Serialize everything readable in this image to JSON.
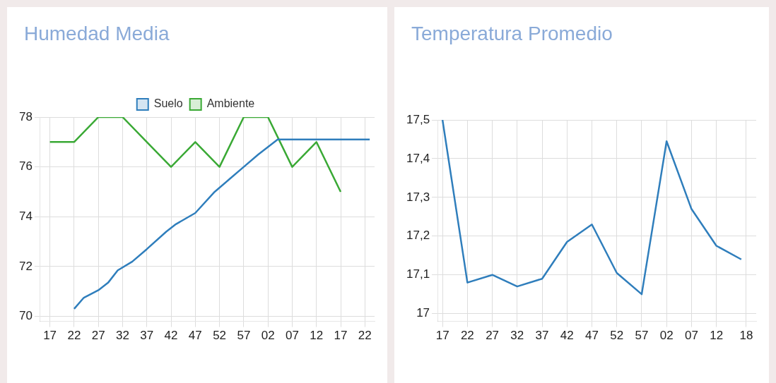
{
  "chart_data": [
    {
      "type": "line",
      "title": "Humedad Media",
      "legend": "top",
      "grid": true,
      "marker": "none",
      "xlim": [
        "--01-01T10:15",
        "--01-01T11:24"
      ],
      "xticks": [
        {
          "value": "--01-01T10:17",
          "label": "17"
        },
        {
          "value": "--01-01T10:22",
          "label": "22"
        },
        {
          "value": "--01-01T10:27",
          "label": "27"
        },
        {
          "value": "--01-01T10:32",
          "label": "32"
        },
        {
          "value": "--01-01T10:37",
          "label": "37"
        },
        {
          "value": "--01-01T10:42",
          "label": "42"
        },
        {
          "value": "--01-01T10:47",
          "label": "47"
        },
        {
          "value": "--01-01T10:52",
          "label": "52"
        },
        {
          "value": "--01-01T10:57",
          "label": "57"
        },
        {
          "value": "--01-01T11:02",
          "label": "02"
        },
        {
          "value": "--01-01T11:07",
          "label": "07"
        },
        {
          "value": "--01-01T11:12",
          "label": "12"
        },
        {
          "value": "--01-01T11:17",
          "label": "17"
        },
        {
          "value": "--01-01T11:22",
          "label": "22"
        }
      ],
      "ylim": [
        69.8,
        78
      ],
      "yticks": [
        70,
        72,
        74,
        76,
        78
      ],
      "series": [
        {
          "name": "Suelo",
          "color": "#2f7ebc",
          "x": [
            "--01-01T10:22",
            "--01-01T10:24",
            "--01-01T10:27",
            "--01-01T10:29",
            "--01-01T10:31",
            "--01-01T10:34",
            "--01-01T10:37",
            "--01-01T10:41",
            "--01-01T10:43",
            "--01-01T10:47",
            "--01-01T10:51",
            "--01-01T10:54",
            "--01-01T10:57",
            "--01-01T11:00",
            "--01-01T11:04",
            "--01-01T11:23"
          ],
          "values": [
            70.3,
            70.75,
            71.05,
            71.35,
            71.85,
            72.2,
            72.7,
            73.4,
            73.7,
            74.15,
            75,
            75.5,
            76,
            76.5,
            77.1,
            77.1
          ]
        },
        {
          "name": "Ambiente",
          "color": "#3aa935",
          "x": [
            "--01-01T10:17",
            "--01-01T10:22",
            "--01-01T10:27",
            "--01-01T10:32",
            "--01-01T10:37",
            "--01-01T10:42",
            "--01-01T10:47",
            "--01-01T10:52",
            "--01-01T10:57",
            "--01-01T11:02",
            "--01-01T11:07",
            "--01-01T11:12",
            "--01-01T11:17"
          ],
          "values": [
            77,
            77,
            78,
            78,
            77,
            76,
            77,
            76,
            78,
            78,
            76,
            77,
            75
          ]
        }
      ]
    },
    {
      "type": "line",
      "title": "Temperatura Promedio",
      "grid": true,
      "marker": "none",
      "xlim": [
        "--01-01T10:16",
        "--01-01T11:20"
      ],
      "xticks": [
        {
          "value": "--01-01T10:17",
          "label": "17"
        },
        {
          "value": "--01-01T10:22",
          "label": "22"
        },
        {
          "value": "--01-01T10:27",
          "label": "27"
        },
        {
          "value": "--01-01T10:32",
          "label": "32"
        },
        {
          "value": "--01-01T10:37",
          "label": "37"
        },
        {
          "value": "--01-01T10:42",
          "label": "42"
        },
        {
          "value": "--01-01T10:47",
          "label": "47"
        },
        {
          "value": "--01-01T10:52",
          "label": "52"
        },
        {
          "value": "--01-01T10:57",
          "label": "57"
        },
        {
          "value": "--01-01T11:02",
          "label": "02"
        },
        {
          "value": "--01-01T11:07",
          "label": "07"
        },
        {
          "value": "--01-01T11:12",
          "label": "12"
        },
        {
          "value": "--01-01T11:18",
          "label": "18"
        }
      ],
      "ylim": [
        16.98,
        17.5
      ],
      "yticks": [
        17,
        {
          "value": 17.1,
          "label": "17,1"
        },
        {
          "value": 17.2,
          "label": "17,2"
        },
        {
          "value": 17.3,
          "label": "17,3"
        },
        {
          "value": 17.4,
          "label": "17,4"
        },
        {
          "value": 17.5,
          "label": "17,5"
        }
      ],
      "series": [
        {
          "color": "#2f7ebc",
          "x": [
            "--01-01T10:17",
            "--01-01T10:22",
            "--01-01T10:27",
            "--01-01T10:32",
            "--01-01T10:37",
            "--01-01T10:42",
            "--01-01T10:47",
            "--01-01T10:52",
            "--01-01T10:57",
            "--01-01T11:02",
            "--01-01T11:07",
            "--01-01T11:12",
            "--01-01T11:17"
          ],
          "values": [
            17.5,
            17.08,
            17.1,
            17.07,
            17.09,
            17.185,
            17.23,
            17.105,
            17.05,
            17.445,
            17.27,
            17.175,
            17.14
          ]
        }
      ]
    }
  ]
}
